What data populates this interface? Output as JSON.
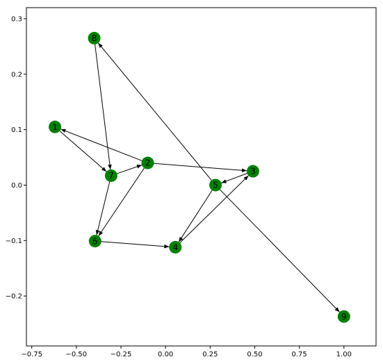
{
  "chart_data": {
    "type": "network-graph",
    "title": "",
    "xlabel": "",
    "ylabel": "",
    "xlim": [
      -0.78,
      1.18
    ],
    "ylim": [
      -0.29,
      0.32
    ],
    "x_ticks": [
      {
        "value": -0.75,
        "label": "−0.75"
      },
      {
        "value": -0.5,
        "label": "−0.50"
      },
      {
        "value": -0.25,
        "label": "−0.25"
      },
      {
        "value": 0.0,
        "label": "0.00"
      },
      {
        "value": 0.25,
        "label": "0.25"
      },
      {
        "value": 0.5,
        "label": "0.50"
      },
      {
        "value": 0.75,
        "label": "0.75"
      },
      {
        "value": 1.0,
        "label": "1.00"
      }
    ],
    "y_ticks": [
      {
        "value": 0.3,
        "label": "0.3"
      },
      {
        "value": 0.2,
        "label": "0.2"
      },
      {
        "value": 0.1,
        "label": "0.1"
      },
      {
        "value": 0.0,
        "label": "0.0"
      },
      {
        "value": -0.1,
        "label": "−0.1"
      },
      {
        "value": -0.2,
        "label": "−0.2"
      }
    ],
    "node_color": "#008000",
    "edge_color": "#000000",
    "nodes": [
      {
        "id": "1",
        "label": "1",
        "x": -0.62,
        "y": 0.105
      },
      {
        "id": "2",
        "label": "2",
        "x": -0.1,
        "y": 0.04
      },
      {
        "id": "3",
        "label": "3",
        "x": 0.49,
        "y": 0.025
      },
      {
        "id": "4",
        "label": "4",
        "x": 0.055,
        "y": -0.112
      },
      {
        "id": "5",
        "label": "5",
        "x": 0.28,
        "y": 0.0
      },
      {
        "id": "6",
        "label": "6",
        "x": -0.395,
        "y": -0.101
      },
      {
        "id": "7",
        "label": "7",
        "x": -0.305,
        "y": 0.017
      },
      {
        "id": "8",
        "label": "8",
        "x": -0.4,
        "y": 0.265
      },
      {
        "id": "9",
        "label": "9",
        "x": 1.0,
        "y": -0.237
      }
    ],
    "edges": [
      {
        "source": "1",
        "target": "7"
      },
      {
        "source": "2",
        "target": "1"
      },
      {
        "source": "7",
        "target": "2"
      },
      {
        "source": "2",
        "target": "3"
      },
      {
        "source": "2",
        "target": "6"
      },
      {
        "source": "8",
        "target": "7"
      },
      {
        "source": "7",
        "target": "6"
      },
      {
        "source": "6",
        "target": "4"
      },
      {
        "source": "3",
        "target": "5"
      },
      {
        "source": "5",
        "target": "4"
      },
      {
        "source": "4",
        "target": "3"
      },
      {
        "source": "5",
        "target": "8"
      },
      {
        "source": "5",
        "target": "9"
      }
    ]
  }
}
